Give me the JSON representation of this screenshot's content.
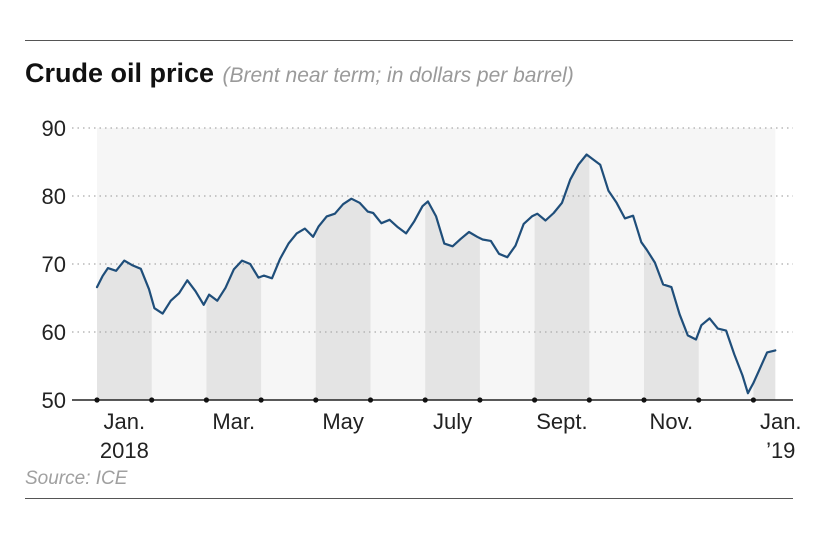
{
  "header": {
    "title": "Crude oil price",
    "subtitle": "(Brent near term; in dollars per barrel)"
  },
  "footer": {
    "source": "Source: ICE"
  },
  "colors": {
    "line": "#1f4e7a",
    "shade": "#e4e4e4",
    "plot_bg": "#f6f6f6",
    "grid": "#aaaaaa"
  },
  "chart_data": {
    "type": "line",
    "title": "Crude oil price",
    "subtitle": "(Brent near term; in dollars per barrel)",
    "xlabel": "",
    "ylabel": "",
    "ylim": [
      50,
      90
    ],
    "yticks": [
      50,
      60,
      70,
      80,
      90
    ],
    "x_range_months": [
      0,
      12.4
    ],
    "x_ticks": [
      {
        "month": 0,
        "line1": "Jan.",
        "line2": "2018"
      },
      {
        "month": 2,
        "line1": "Mar.",
        "line2": ""
      },
      {
        "month": 4,
        "line1": "May",
        "line2": ""
      },
      {
        "month": 6,
        "line1": "July",
        "line2": ""
      },
      {
        "month": 8,
        "line1": "Sept.",
        "line2": ""
      },
      {
        "month": 10,
        "line1": "Nov.",
        "line2": ""
      },
      {
        "month": 12,
        "line1": "Jan.",
        "line2": "’19"
      }
    ],
    "shaded_months": [
      [
        0,
        1
      ],
      [
        2,
        3
      ],
      [
        4,
        5
      ],
      [
        6,
        7
      ],
      [
        8,
        9
      ],
      [
        10,
        11
      ],
      [
        12,
        12.4
      ]
    ],
    "grid": "horizontal dotted",
    "series": [
      {
        "name": "Brent near term",
        "x_month": [
          0.0,
          0.1,
          0.2,
          0.35,
          0.5,
          0.65,
          0.8,
          0.95,
          1.05,
          1.2,
          1.35,
          1.5,
          1.65,
          1.8,
          1.95,
          2.05,
          2.2,
          2.35,
          2.5,
          2.65,
          2.8,
          2.95,
          3.05,
          3.2,
          3.35,
          3.5,
          3.65,
          3.8,
          3.95,
          4.05,
          4.2,
          4.35,
          4.5,
          4.65,
          4.8,
          4.95,
          5.05,
          5.2,
          5.35,
          5.5,
          5.65,
          5.8,
          5.95,
          6.05,
          6.2,
          6.35,
          6.5,
          6.65,
          6.8,
          6.95,
          7.05,
          7.2,
          7.35,
          7.5,
          7.65,
          7.8,
          7.95,
          8.05,
          8.2,
          8.35,
          8.5,
          8.65,
          8.8,
          8.95,
          9.05,
          9.2,
          9.35,
          9.5,
          9.65,
          9.8,
          9.95,
          10.05,
          10.2,
          10.35,
          10.5,
          10.65,
          10.8,
          10.95,
          11.05,
          11.2,
          11.35,
          11.5,
          11.65,
          11.8,
          11.9,
          12.0,
          12.1,
          12.25,
          12.4
        ],
        "values": [
          66.6,
          68.2,
          69.4,
          69.0,
          70.5,
          69.8,
          69.3,
          66.3,
          63.5,
          62.7,
          64.6,
          65.7,
          67.6,
          66.0,
          64.0,
          65.5,
          64.6,
          66.5,
          69.2,
          70.5,
          70.0,
          68.0,
          68.3,
          67.9,
          70.8,
          73.0,
          74.5,
          75.2,
          74.0,
          75.5,
          77.0,
          77.4,
          78.8,
          79.6,
          79.0,
          77.7,
          77.5,
          76.0,
          76.5,
          75.4,
          74.5,
          76.3,
          78.5,
          79.2,
          77.0,
          73.0,
          72.6,
          73.7,
          74.7,
          74.0,
          73.6,
          73.4,
          71.5,
          71.0,
          72.7,
          75.9,
          77.0,
          77.4,
          76.4,
          77.5,
          79.0,
          82.4,
          84.6,
          86.1,
          85.5,
          84.6,
          80.8,
          79.0,
          76.7,
          77.1,
          73.2,
          72.1,
          70.2,
          67.0,
          66.6,
          62.6,
          59.5,
          58.9,
          61.0,
          62.0,
          60.5,
          60.2,
          56.7,
          53.6,
          51.0,
          52.5,
          54.3,
          57.0,
          57.3
        ]
      }
    ]
  }
}
